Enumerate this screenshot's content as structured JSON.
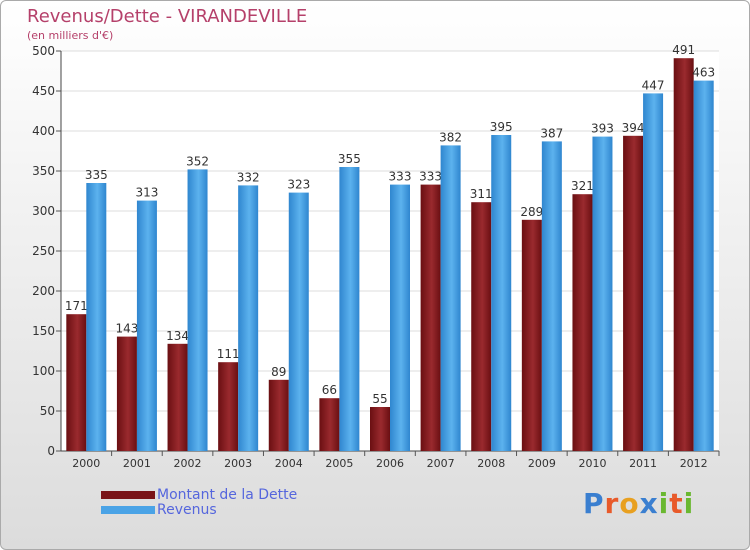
{
  "chart_data": {
    "type": "bar",
    "title": "Revenus/Dette - VIRANDEVILLE",
    "subtitle": "(en milliers d'€)",
    "categories": [
      "2000",
      "2001",
      "2002",
      "2003",
      "2004",
      "2005",
      "2006",
      "2007",
      "2008",
      "2009",
      "2010",
      "2011",
      "2012"
    ],
    "series": [
      {
        "name": "Montant de la Dette",
        "color": "#7a1418",
        "values": [
          171,
          143,
          134,
          111,
          89,
          66,
          55,
          333,
          311,
          289,
          321,
          394,
          491
        ]
      },
      {
        "name": "Revenus",
        "color": "#4aa3e6",
        "values": [
          335,
          313,
          352,
          332,
          323,
          355,
          333,
          382,
          395,
          387,
          393,
          447,
          463
        ]
      }
    ],
    "yticks": [
      0,
      50,
      100,
      150,
      200,
      250,
      300,
      350,
      400,
      450,
      500
    ],
    "ylim": [
      0,
      500
    ],
    "grid": true,
    "legend": "bottom-left"
  },
  "brand": {
    "letters": [
      "P",
      "r",
      "o",
      "x",
      "i",
      "t",
      "i"
    ],
    "colors": [
      "#3a7fd0",
      "#e85a2a",
      "#e8a020",
      "#3a7fd0",
      "#6ab830",
      "#e85a2a",
      "#6ab830"
    ]
  }
}
